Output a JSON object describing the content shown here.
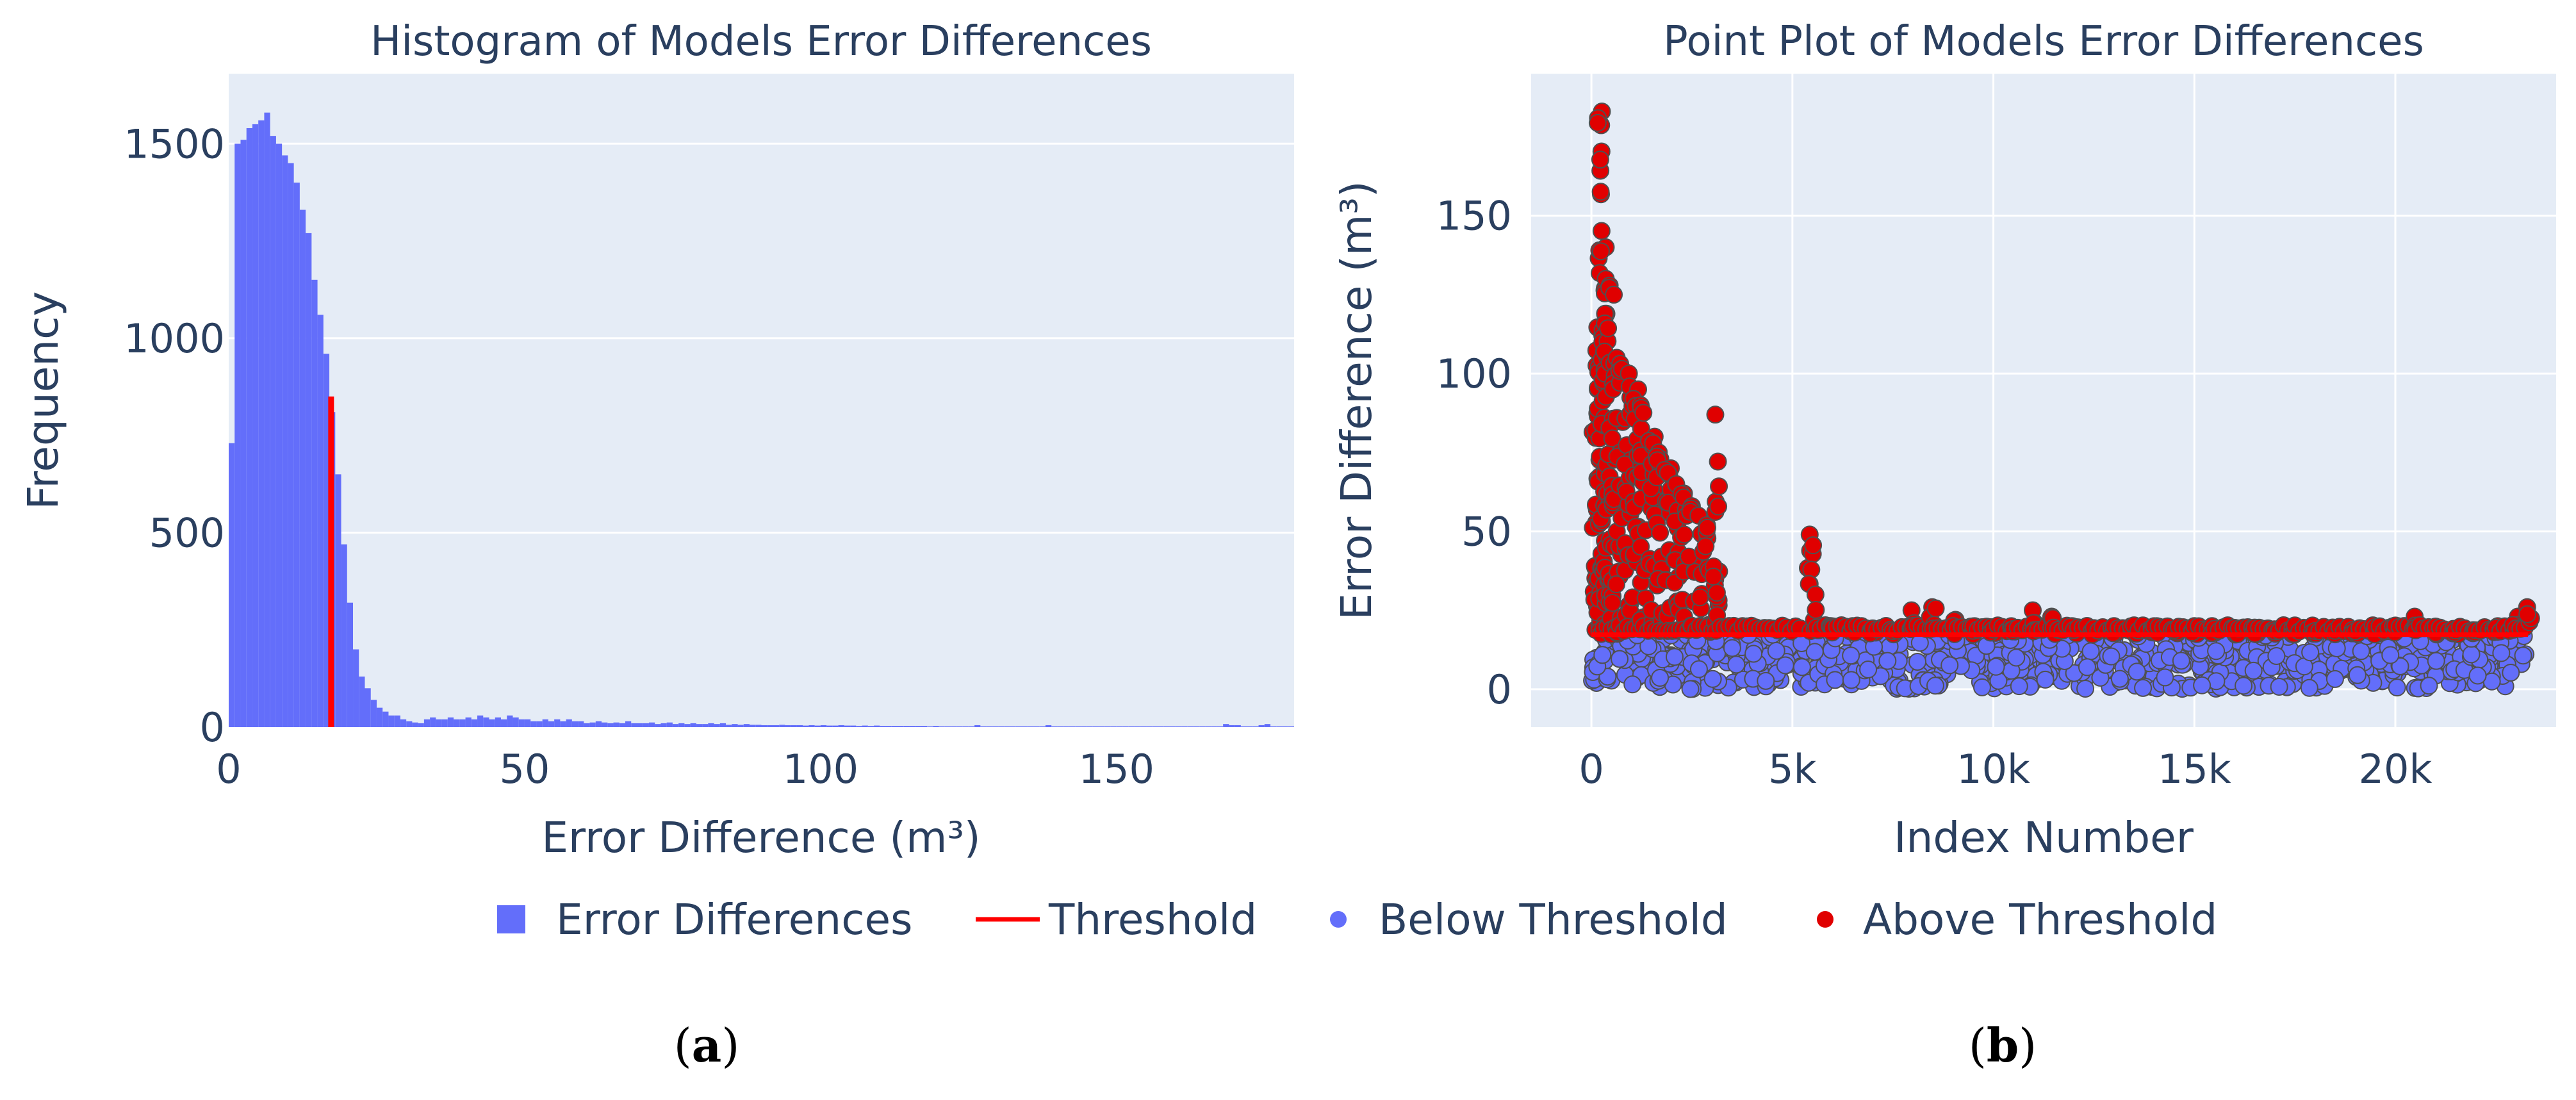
{
  "colors": {
    "plot_bg": "#e5ecf6",
    "grid": "#ffffff",
    "text": "#2a3f5f",
    "hist": "#636efa",
    "threshold": "#ff0000",
    "below": "#636efa",
    "above": "#e00000",
    "marker_edge": "#505050"
  },
  "legend": {
    "placement": "bottom-center",
    "items": [
      {
        "label": "Error Differences",
        "symbol": "square",
        "color": "#636efa"
      },
      {
        "label": "Threshold",
        "symbol": "line",
        "color": "#ff0000"
      },
      {
        "label": "Below Threshold",
        "symbol": "dot",
        "color": "#636efa"
      },
      {
        "label": "Above Threshold",
        "symbol": "dot",
        "color": "#e00000"
      }
    ]
  },
  "panels": {
    "a": {
      "label_prefix": "(",
      "label_letter": "a",
      "label_suffix": ")"
    },
    "b": {
      "label_prefix": "(",
      "label_letter": "b",
      "label_suffix": ")"
    }
  },
  "chart_data": [
    {
      "type": "bar",
      "subtype": "histogram",
      "title": "Histogram of Models Error Differences",
      "xlabel": "Error Difference (m³)",
      "ylabel": "Frequency",
      "xlim": [
        0,
        180
      ],
      "ylim": [
        0,
        1680
      ],
      "x_ticks": [
        0,
        50,
        100,
        150
      ],
      "y_ticks": [
        0,
        500,
        1000,
        1500
      ],
      "bin_width": 1,
      "grid": "horizontal",
      "series": [
        {
          "name": "Error Differences",
          "bin_start": 0,
          "values": [
            730,
            1500,
            1510,
            1540,
            1550,
            1560,
            1580,
            1520,
            1500,
            1470,
            1450,
            1400,
            1330,
            1270,
            1150,
            1060,
            960,
            810,
            650,
            470,
            320,
            200,
            130,
            100,
            70,
            50,
            40,
            30,
            30,
            20,
            15,
            12,
            10,
            20,
            25,
            20,
            20,
            25,
            20,
            20,
            25,
            20,
            30,
            25,
            20,
            25,
            20,
            30,
            25,
            20,
            20,
            15,
            15,
            20,
            15,
            20,
            15,
            20,
            15,
            15,
            10,
            12,
            15,
            12,
            10,
            12,
            10,
            15,
            10,
            10,
            10,
            12,
            8,
            10,
            12,
            8,
            10,
            8,
            10,
            8,
            8,
            10,
            8,
            10,
            6,
            8,
            6,
            8,
            6,
            6,
            5,
            5,
            5,
            6,
            5,
            5,
            5,
            4,
            5,
            4,
            5,
            4,
            4,
            5,
            4,
            4,
            3,
            4,
            3,
            4,
            3,
            3,
            3,
            3,
            3,
            3,
            3,
            3,
            2,
            3,
            2,
            2,
            2,
            2,
            2,
            2,
            5,
            2,
            2,
            2,
            2,
            2,
            2,
            2,
            2,
            2,
            2,
            2,
            5,
            2,
            2,
            2,
            2,
            2,
            2,
            2,
            2,
            2,
            2,
            2,
            2,
            2,
            2,
            2,
            2,
            2,
            2,
            2,
            2,
            2,
            2,
            2,
            2,
            2,
            2,
            2,
            2,
            2,
            8,
            5,
            5,
            2,
            2,
            2,
            5,
            8,
            2,
            2,
            2,
            2
          ]
        },
        {
          "name": "Threshold",
          "type": "line",
          "x": [
            17.3,
            17.3
          ],
          "y": [
            0,
            850
          ]
        }
      ]
    },
    {
      "type": "scatter",
      "title": "Point Plot of Models Error Differences",
      "xlabel": "Index Number",
      "ylabel": "Error Difference (m³)",
      "xlim": [
        -1500,
        24000
      ],
      "ylim": [
        -12,
        195
      ],
      "x_ticks": [
        0,
        5000,
        10000,
        15000,
        20000
      ],
      "x_tick_labels": [
        "0",
        "5k",
        "10k",
        "15k",
        "20k"
      ],
      "y_ticks": [
        0,
        50,
        100,
        150
      ],
      "grid": "both",
      "threshold": 17.3,
      "series": [
        {
          "name": "Below Threshold",
          "approx_count": 23300,
          "y_range": [
            0,
            17.3
          ],
          "x_range": [
            0,
            23300
          ]
        },
        {
          "name": "Threshold",
          "type": "line",
          "x": [
            0,
            23300
          ],
          "y": [
            17.3,
            17.3
          ]
        },
        {
          "name": "Above Threshold",
          "envelope": {
            "x": [
              100,
              200,
              300,
              400,
              500,
              700,
              900,
              1100,
              1300,
              1500,
              1700,
              1900,
              2100,
              2300,
              2500,
              2700,
              2900,
              3100,
              5300,
              5450,
              5600,
              6000,
              6500,
              7000,
              7500,
              8000,
              8500,
              9000,
              9500,
              10000,
              10500,
              11000,
              11500,
              12000,
              12500,
              13000,
              13500,
              14000,
              14500,
              15000,
              15500,
              16000,
              16500,
              17000,
              17500,
              18000,
              18500,
              19000,
              19500,
              20000,
              20500,
              21000,
              21500,
              22000,
              22500,
              23000,
              23300
            ],
            "y_max": [
              95,
              183,
              140,
              130,
              125,
              105,
              100,
              95,
              90,
              80,
              75,
              70,
              65,
              62,
              58,
              55,
              52,
              87,
              0,
              49,
              30,
              20,
              20,
              18,
              18,
              25,
              26,
              22,
              20,
              18,
              20,
              25,
              23,
              20,
              18,
              18,
              20,
              20,
              19,
              18,
              18,
              17.5,
              18,
              19,
              18,
              18,
              18,
              18,
              18,
              20,
              23,
              18,
              18,
              18,
              20,
              23,
              26
            ]
          }
        }
      ]
    }
  ]
}
